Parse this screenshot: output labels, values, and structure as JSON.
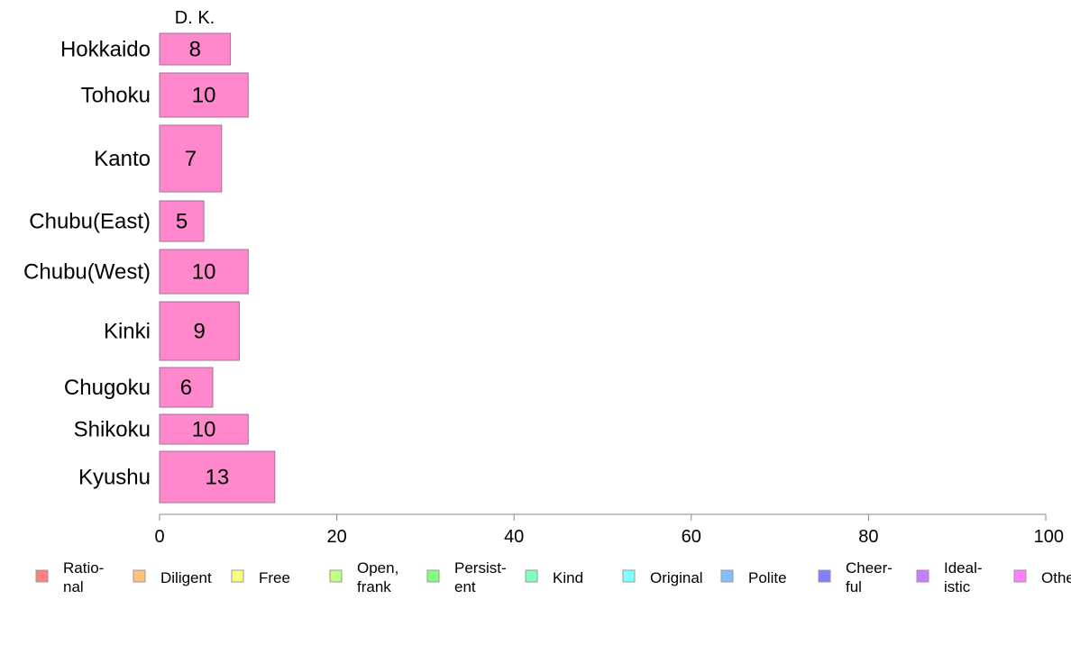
{
  "chart_data": {
    "type": "bar",
    "orientation": "horizontal",
    "title": "D. K.",
    "categories": [
      "Hokkaido",
      "Tohoku",
      "Kanto",
      "Chubu(East)",
      "Chubu(West)",
      "Kinki",
      "Chugoku",
      "Shikoku",
      "Kyushu"
    ],
    "series": [
      {
        "values": [
          8,
          10,
          7,
          5,
          10,
          9,
          6,
          10,
          13
        ],
        "color": "#ff88cc"
      }
    ],
    "data_labels": [
      "8",
      "10",
      "7",
      "5",
      "10",
      "9",
      "6",
      "10",
      "13"
    ],
    "xlim": [
      0,
      100
    ],
    "xticks": [
      0,
      20,
      40,
      60,
      80,
      100
    ],
    "xtick_labels": [
      "0",
      "20",
      "40",
      "60",
      "80",
      "100"
    ],
    "grid": false,
    "legend": {
      "position": "bottom",
      "items": [
        {
          "lines": [
            "Ratio-",
            "nal"
          ],
          "color": "#ff8080"
        },
        {
          "lines": [
            "Diligent"
          ],
          "color": "#ffc080"
        },
        {
          "lines": [
            "Free"
          ],
          "color": "#ffff80"
        },
        {
          "lines": [
            "Open,",
            "frank"
          ],
          "color": "#c0ff80"
        },
        {
          "lines": [
            "Persist-",
            "ent"
          ],
          "color": "#80ff80"
        },
        {
          "lines": [
            "Kind"
          ],
          "color": "#80ffc0"
        },
        {
          "lines": [
            "Original"
          ],
          "color": "#80ffff"
        },
        {
          "lines": [
            "Polite"
          ],
          "color": "#80c0ff"
        },
        {
          "lines": [
            "Cheer-",
            "ful"
          ],
          "color": "#8080ff"
        },
        {
          "lines": [
            "Ideal-",
            "istic"
          ],
          "color": "#c080ff"
        },
        {
          "lines": [
            "Other"
          ],
          "color": "#ff80ff"
        }
      ]
    }
  }
}
